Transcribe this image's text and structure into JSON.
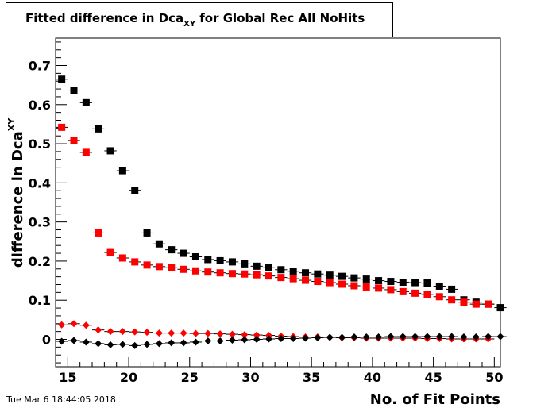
{
  "chart_data": {
    "type": "scatter",
    "title": "Fitted difference in Dca",
    "title_subscript": "XY",
    "title_suffix": " for Global Rec All NoHits",
    "xlabel": "No. of Fit Points",
    "ylabel": "difference in Dca",
    "ylabel_subscript": "XY",
    "xlim": [
      14,
      50.5
    ],
    "ylim": [
      -0.07,
      0.77
    ],
    "x_ticks": [
      15,
      20,
      25,
      30,
      35,
      40,
      45,
      50
    ],
    "y_ticks": [
      0,
      0.1,
      0.2,
      0.3,
      0.4,
      0.5,
      0.6,
      0.7
    ],
    "grid": false,
    "series": [
      {
        "marker": "square",
        "color": "#000000",
        "points": [
          [
            14.5,
            0.665
          ],
          [
            15.5,
            0.637
          ],
          [
            16.5,
            0.605
          ],
          [
            17.5,
            0.538
          ],
          [
            18.5,
            0.482
          ],
          [
            19.5,
            0.431
          ],
          [
            20.5,
            0.381
          ],
          [
            21.5,
            0.272
          ],
          [
            22.5,
            0.244
          ],
          [
            23.5,
            0.229
          ],
          [
            24.5,
            0.22
          ],
          [
            25.5,
            0.211
          ],
          [
            26.5,
            0.204
          ],
          [
            27.5,
            0.201
          ],
          [
            28.5,
            0.198
          ],
          [
            29.5,
            0.193
          ],
          [
            30.5,
            0.187
          ],
          [
            31.5,
            0.183
          ],
          [
            32.5,
            0.178
          ],
          [
            33.5,
            0.174
          ],
          [
            34.5,
            0.17
          ],
          [
            35.5,
            0.167
          ],
          [
            36.5,
            0.164
          ],
          [
            37.5,
            0.161
          ],
          [
            38.5,
            0.157
          ],
          [
            39.5,
            0.154
          ],
          [
            40.5,
            0.15
          ],
          [
            41.5,
            0.148
          ],
          [
            42.5,
            0.146
          ],
          [
            43.5,
            0.145
          ],
          [
            44.5,
            0.144
          ],
          [
            45.5,
            0.136
          ],
          [
            46.5,
            0.128
          ],
          [
            47.5,
            0.101
          ],
          [
            48.5,
            0.095
          ],
          [
            49.5,
            0.09
          ],
          [
            50.5,
            0.081
          ]
        ]
      },
      {
        "marker": "square",
        "color": "#ff0000",
        "points": [
          [
            14.5,
            0.542
          ],
          [
            15.5,
            0.508
          ],
          [
            16.5,
            0.478
          ],
          [
            17.5,
            0.272
          ],
          [
            18.5,
            0.222
          ],
          [
            19.5,
            0.208
          ],
          [
            20.5,
            0.198
          ],
          [
            21.5,
            0.19
          ],
          [
            22.5,
            0.186
          ],
          [
            23.5,
            0.183
          ],
          [
            24.5,
            0.179
          ],
          [
            25.5,
            0.175
          ],
          [
            26.5,
            0.172
          ],
          [
            27.5,
            0.17
          ],
          [
            28.5,
            0.168
          ],
          [
            29.5,
            0.167
          ],
          [
            30.5,
            0.165
          ],
          [
            31.5,
            0.162
          ],
          [
            32.5,
            0.158
          ],
          [
            33.5,
            0.155
          ],
          [
            34.5,
            0.151
          ],
          [
            35.5,
            0.148
          ],
          [
            36.5,
            0.145
          ],
          [
            37.5,
            0.141
          ],
          [
            38.5,
            0.137
          ],
          [
            39.5,
            0.134
          ],
          [
            40.5,
            0.131
          ],
          [
            41.5,
            0.127
          ],
          [
            42.5,
            0.122
          ],
          [
            43.5,
            0.118
          ],
          [
            44.5,
            0.115
          ],
          [
            45.5,
            0.109
          ],
          [
            46.5,
            0.101
          ],
          [
            47.5,
            0.095
          ],
          [
            48.5,
            0.09
          ],
          [
            49.5,
            0.09
          ]
        ]
      },
      {
        "marker": "diamond",
        "color": "#ff0000",
        "points": [
          [
            14.5,
            0.037
          ],
          [
            15.5,
            0.04
          ],
          [
            16.5,
            0.036
          ],
          [
            17.5,
            0.024
          ],
          [
            18.5,
            0.02
          ],
          [
            19.5,
            0.02
          ],
          [
            20.5,
            0.019
          ],
          [
            21.5,
            0.018
          ],
          [
            22.5,
            0.016
          ],
          [
            23.5,
            0.016
          ],
          [
            24.5,
            0.016
          ],
          [
            25.5,
            0.015
          ],
          [
            26.5,
            0.015
          ],
          [
            27.5,
            0.014
          ],
          [
            28.5,
            0.013
          ],
          [
            29.5,
            0.012
          ],
          [
            30.5,
            0.011
          ],
          [
            31.5,
            0.01
          ],
          [
            32.5,
            0.008
          ],
          [
            33.5,
            0.007
          ],
          [
            34.5,
            0.006
          ],
          [
            35.5,
            0.006
          ],
          [
            36.5,
            0.005
          ],
          [
            37.5,
            0.004
          ],
          [
            38.5,
            0.004
          ],
          [
            39.5,
            0.003
          ],
          [
            40.5,
            0.003
          ],
          [
            41.5,
            0.003
          ],
          [
            42.5,
            0.003
          ],
          [
            43.5,
            0.003
          ],
          [
            44.5,
            0.002
          ],
          [
            45.5,
            0.002
          ],
          [
            46.5,
            0.001
          ],
          [
            47.5,
            0.001
          ],
          [
            48.5,
            0.001
          ],
          [
            49.5,
            0.001
          ]
        ]
      },
      {
        "marker": "diamond",
        "color": "#000000",
        "points": [
          [
            14.5,
            -0.005
          ],
          [
            15.5,
            -0.003
          ],
          [
            16.5,
            -0.007
          ],
          [
            17.5,
            -0.011
          ],
          [
            18.5,
            -0.014
          ],
          [
            19.5,
            -0.013
          ],
          [
            20.5,
            -0.016
          ],
          [
            21.5,
            -0.013
          ],
          [
            22.5,
            -0.011
          ],
          [
            23.5,
            -0.009
          ],
          [
            24.5,
            -0.009
          ],
          [
            25.5,
            -0.007
          ],
          [
            26.5,
            -0.004
          ],
          [
            27.5,
            -0.004
          ],
          [
            28.5,
            -0.002
          ],
          [
            29.5,
            -0.001
          ],
          [
            30.5,
            0.0
          ],
          [
            31.5,
            0.001
          ],
          [
            32.5,
            0.002
          ],
          [
            33.5,
            0.002
          ],
          [
            34.5,
            0.003
          ],
          [
            35.5,
            0.004
          ],
          [
            36.5,
            0.005
          ],
          [
            37.5,
            0.005
          ],
          [
            38.5,
            0.006
          ],
          [
            39.5,
            0.006
          ],
          [
            40.5,
            0.006
          ],
          [
            41.5,
            0.007
          ],
          [
            42.5,
            0.007
          ],
          [
            43.5,
            0.007
          ],
          [
            44.5,
            0.007
          ],
          [
            45.5,
            0.007
          ],
          [
            46.5,
            0.007
          ],
          [
            47.5,
            0.006
          ],
          [
            48.5,
            0.006
          ],
          [
            49.5,
            0.007
          ],
          [
            50.5,
            0.007
          ]
        ]
      }
    ]
  },
  "footer": {
    "timestamp": "Tue Mar  6 18:44:05 2018"
  }
}
